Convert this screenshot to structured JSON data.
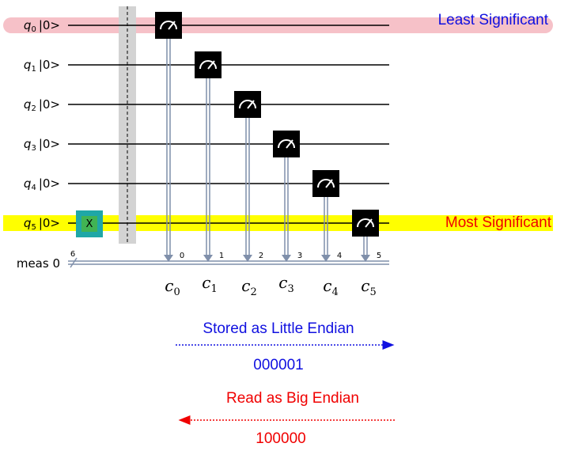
{
  "colors": {
    "wire": "#000000",
    "classical": "#7f8faa",
    "barrier": "#d3d3d3",
    "measure_box": "#000000",
    "x_gate": "#1fa7a7",
    "lsb_highlight": "#f6c1c8",
    "msb_highlight": "#ffff00",
    "blue": "#1010e0",
    "red": "#f00000"
  },
  "qubits": [
    {
      "name": "q",
      "index": "0",
      "state": "|0>"
    },
    {
      "name": "q",
      "index": "1",
      "state": "|0>"
    },
    {
      "name": "q",
      "index": "2",
      "state": "|0>"
    },
    {
      "name": "q",
      "index": "3",
      "state": "|0>"
    },
    {
      "name": "q",
      "index": "4",
      "state": "|0>"
    },
    {
      "name": "q",
      "index": "5",
      "state": "|0>"
    }
  ],
  "classical_register": {
    "label": "meas 0",
    "width": "6",
    "bit_indices": [
      "0",
      "1",
      "2",
      "3",
      "4",
      "5"
    ]
  },
  "gates": {
    "x_label": "X",
    "x_qubit": 5
  },
  "bits": [
    {
      "name": "c",
      "index": "0"
    },
    {
      "name": "c",
      "index": "1"
    },
    {
      "name": "c",
      "index": "2"
    },
    {
      "name": "c",
      "index": "3"
    },
    {
      "name": "c",
      "index": "4"
    },
    {
      "name": "c",
      "index": "5"
    }
  ],
  "annotations": {
    "least_significant": "Least Significant",
    "most_significant": "Most Significant",
    "little_endian_label": "Stored as Little Endian",
    "little_endian_value": "000001",
    "big_endian_label": "Read as Big Endian",
    "big_endian_value": "100000"
  }
}
